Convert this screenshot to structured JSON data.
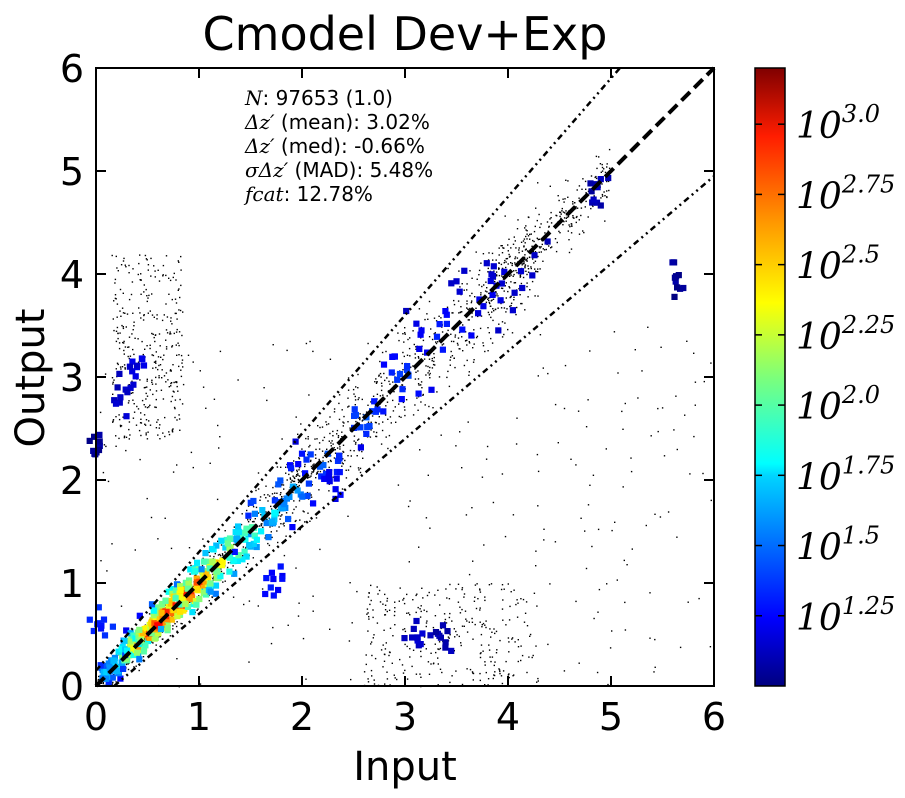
{
  "chart_data": {
    "type": "heatmap",
    "title": "Cmodel Dev+Exp",
    "xlabel": "Input",
    "ylabel": "Output",
    "xlim": [
      0,
      6
    ],
    "ylim": [
      0,
      6
    ],
    "x_ticks": [
      "0",
      "1",
      "2",
      "3",
      "4",
      "5",
      "6"
    ],
    "y_ticks": [
      "0",
      "1",
      "2",
      "3",
      "4",
      "5",
      "6"
    ],
    "grid": false,
    "colormap": "jet",
    "colorbar": {
      "log_range": [
        1.0,
        3.2
      ],
      "ticks": [
        {
          "base": "10",
          "exp": "3.0",
          "log": 3.0
        },
        {
          "base": "10",
          "exp": "2.75",
          "log": 2.75
        },
        {
          "base": "10",
          "exp": "2.5",
          "log": 2.5
        },
        {
          "base": "10",
          "exp": "2.25",
          "log": 2.25
        },
        {
          "base": "10",
          "exp": "2.0",
          "log": 2.0
        },
        {
          "base": "10",
          "exp": "1.75",
          "log": 1.75
        },
        {
          "base": "10",
          "exp": "1.5",
          "log": 1.5
        },
        {
          "base": "10",
          "exp": "1.25",
          "log": 1.25
        }
      ]
    },
    "reference_lines": [
      {
        "style": "dashed",
        "slope": 1.0,
        "intercept": 0.0
      },
      {
        "style": "dash-dot-dot",
        "slope": 1.15,
        "intercept": 0.15
      },
      {
        "style": "dash-dot-dot",
        "slope": 0.85,
        "intercept": -0.15
      }
    ],
    "stats": [
      {
        "symbol": "N",
        "text": ": 97653 (1.0)"
      },
      {
        "symbol": "Δz′",
        "text": " (mean): 3.02%"
      },
      {
        "symbol": "Δz′",
        "text": " (med): -0.66%"
      },
      {
        "symbol": "σΔz′",
        "text": " (MAD): 5.48%"
      },
      {
        "symbol": "fcat",
        "text": ": 12.78%"
      }
    ],
    "density_ridge": [
      {
        "x": 0.1,
        "y": 0.12,
        "log": 1.8
      },
      {
        "x": 0.2,
        "y": 0.2,
        "log": 1.95
      },
      {
        "x": 0.3,
        "y": 0.3,
        "log": 2.4
      },
      {
        "x": 0.4,
        "y": 0.4,
        "log": 2.85
      },
      {
        "x": 0.5,
        "y": 0.5,
        "log": 2.95
      },
      {
        "x": 0.6,
        "y": 0.6,
        "log": 3.05
      },
      {
        "x": 0.7,
        "y": 0.7,
        "log": 3.1
      },
      {
        "x": 0.8,
        "y": 0.8,
        "log": 3.15
      },
      {
        "x": 0.9,
        "y": 0.9,
        "log": 3.05
      },
      {
        "x": 1.0,
        "y": 1.0,
        "log": 2.9
      },
      {
        "x": 1.1,
        "y": 1.1,
        "log": 2.7
      },
      {
        "x": 1.2,
        "y": 1.2,
        "log": 2.55
      },
      {
        "x": 1.35,
        "y": 1.35,
        "log": 2.4
      },
      {
        "x": 1.5,
        "y": 1.5,
        "log": 2.15
      },
      {
        "x": 1.7,
        "y": 1.7,
        "log": 1.9
      },
      {
        "x": 1.9,
        "y": 1.9,
        "log": 1.7
      },
      {
        "x": 2.2,
        "y": 2.2,
        "log": 1.55
      },
      {
        "x": 2.6,
        "y": 2.6,
        "log": 1.5
      },
      {
        "x": 3.0,
        "y": 3.0,
        "log": 1.45
      },
      {
        "x": 3.4,
        "y": 3.4,
        "log": 1.4
      },
      {
        "x": 3.8,
        "y": 3.8,
        "log": 1.25
      },
      {
        "x": 4.0,
        "y": 4.05,
        "log": 1.2
      }
    ],
    "clusters": [
      {
        "x": 0.4,
        "y": 3.1,
        "log": 1.25
      },
      {
        "x": 0.25,
        "y": 2.8,
        "log": 1.2
      },
      {
        "x": 3.1,
        "y": 0.5,
        "log": 1.2
      },
      {
        "x": 3.35,
        "y": 0.5,
        "log": 1.15
      },
      {
        "x": 1.75,
        "y": 1.0,
        "log": 1.35
      },
      {
        "x": 2.3,
        "y": 1.95,
        "log": 1.3
      },
      {
        "x": 0.05,
        "y": 0.6,
        "log": 1.4
      },
      {
        "x": 4.85,
        "y": 4.8,
        "log": 1.15
      },
      {
        "x": 5.62,
        "y": 3.92,
        "log": 1.1
      },
      {
        "x": 0.02,
        "y": 2.3,
        "log": 1.1
      }
    ]
  }
}
